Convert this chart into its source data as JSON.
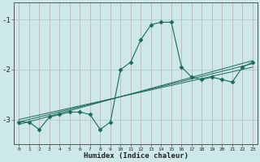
{
  "xlabel": "Humidex (Indice chaleur)",
  "background_color": "#cce8e8",
  "grid_color_v": "#d4a0a0",
  "grid_color_h": "#a8c8c8",
  "line_color": "#1a6b5a",
  "xlim": [
    -0.5,
    23.5
  ],
  "ylim": [
    -3.5,
    -0.65
  ],
  "yticks": [
    -3,
    -2,
    -1
  ],
  "xticks": [
    0,
    1,
    2,
    3,
    4,
    5,
    6,
    7,
    8,
    9,
    10,
    11,
    12,
    13,
    14,
    15,
    16,
    17,
    18,
    19,
    20,
    21,
    22,
    23
  ],
  "main_line_x": [
    0,
    1,
    2,
    3,
    4,
    5,
    6,
    7,
    8,
    9,
    10,
    11,
    12,
    13,
    14,
    15,
    16,
    17,
    18,
    19,
    20,
    21,
    22,
    23
  ],
  "main_line_y": [
    -3.05,
    -3.05,
    -3.2,
    -2.95,
    -2.9,
    -2.85,
    -2.85,
    -2.9,
    -3.2,
    -3.05,
    -2.0,
    -1.85,
    -1.4,
    -1.1,
    -1.05,
    -1.05,
    -1.95,
    -2.15,
    -2.2,
    -2.15,
    -2.2,
    -2.25,
    -1.95,
    -1.85
  ],
  "reg_line1_x": [
    0,
    23
  ],
  "reg_line1_y": [
    -3.1,
    -1.82
  ],
  "reg_line2_x": [
    0,
    23
  ],
  "reg_line2_y": [
    -3.05,
    -1.88
  ],
  "reg_line3_x": [
    0,
    23
  ],
  "reg_line3_y": [
    -3.0,
    -1.95
  ]
}
